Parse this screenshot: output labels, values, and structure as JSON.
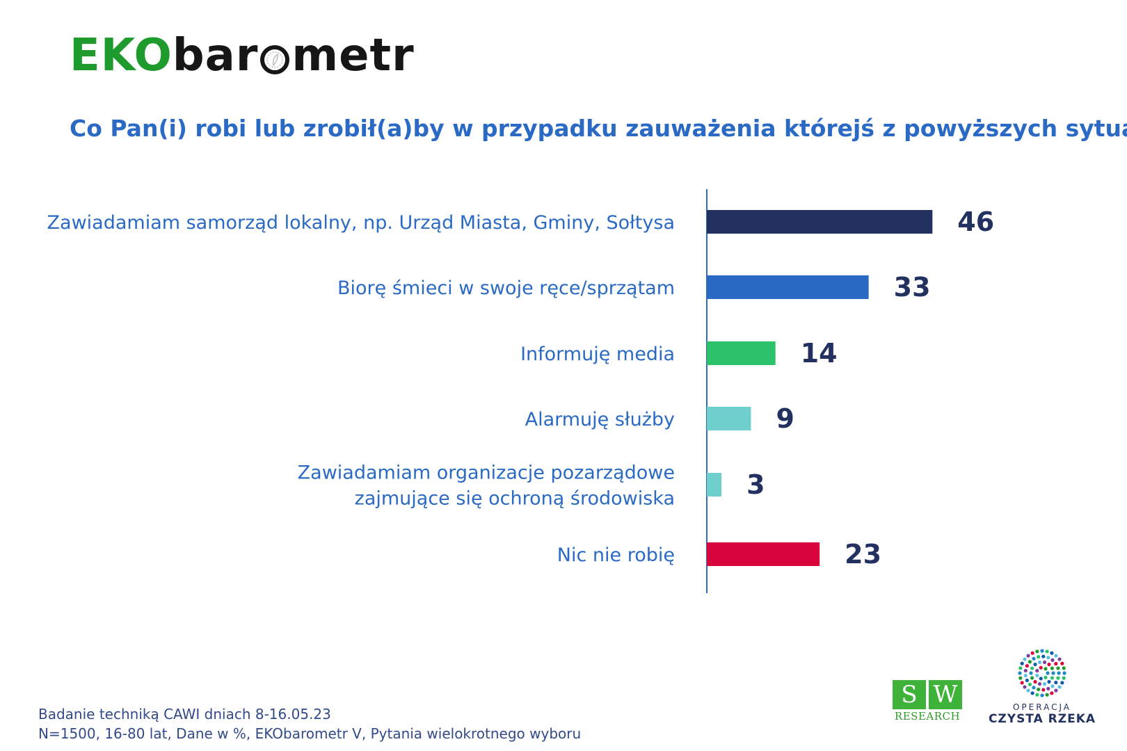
{
  "brand": {
    "logo_part1": "EKO",
    "logo_part2a": "bar",
    "logo_part2b": "metr",
    "logo_colors": {
      "eko": "#1f9b2e",
      "bar": "#161616"
    }
  },
  "question": "Co Pan(i) robi lub zrobił(a)by w przypadku zauważenia którejś z powyższych sytuacji?",
  "chart_data": {
    "type": "bar",
    "orientation": "horizontal",
    "title": "Co Pan(i) robi lub zrobił(a)by w przypadku zauważenia którejś z powyższych sytuacji?",
    "categories": [
      [
        "Zawiadamiam samorząd lokalny, np. Urząd Miasta, Gminy, Sołtysa"
      ],
      [
        "Biorę śmieci w swoje ręce/sprzątam"
      ],
      [
        "Informuję media"
      ],
      [
        "Alarmuję służby"
      ],
      [
        "Zawiadamiam organizacje pozarządowe",
        "zajmujące się ochroną środowiska"
      ],
      [
        "Nic nie robię"
      ]
    ],
    "values": [
      46,
      33,
      14,
      9,
      3,
      23
    ],
    "colors": [
      "#22315f",
      "#2a6ac4",
      "#2cc26c",
      "#6fcfcc",
      "#6fcfcc",
      "#d9063e"
    ],
    "unit": "%",
    "xlim": [
      0,
      100
    ],
    "grid": false
  },
  "footer": {
    "line1": "Badanie techniką CAWI dniach 8-16.05.23",
    "line2": "N=1500, 16-80 lat, Dane w %, EKObarometr V, Pytania wielokrotnego wyboru"
  },
  "logos": {
    "sw_s": "S",
    "sw_w": "W",
    "sw_sub": "RESEARCH",
    "cr_small": "OPERACJA",
    "cr_big": "CZYSTA RZEKA"
  }
}
